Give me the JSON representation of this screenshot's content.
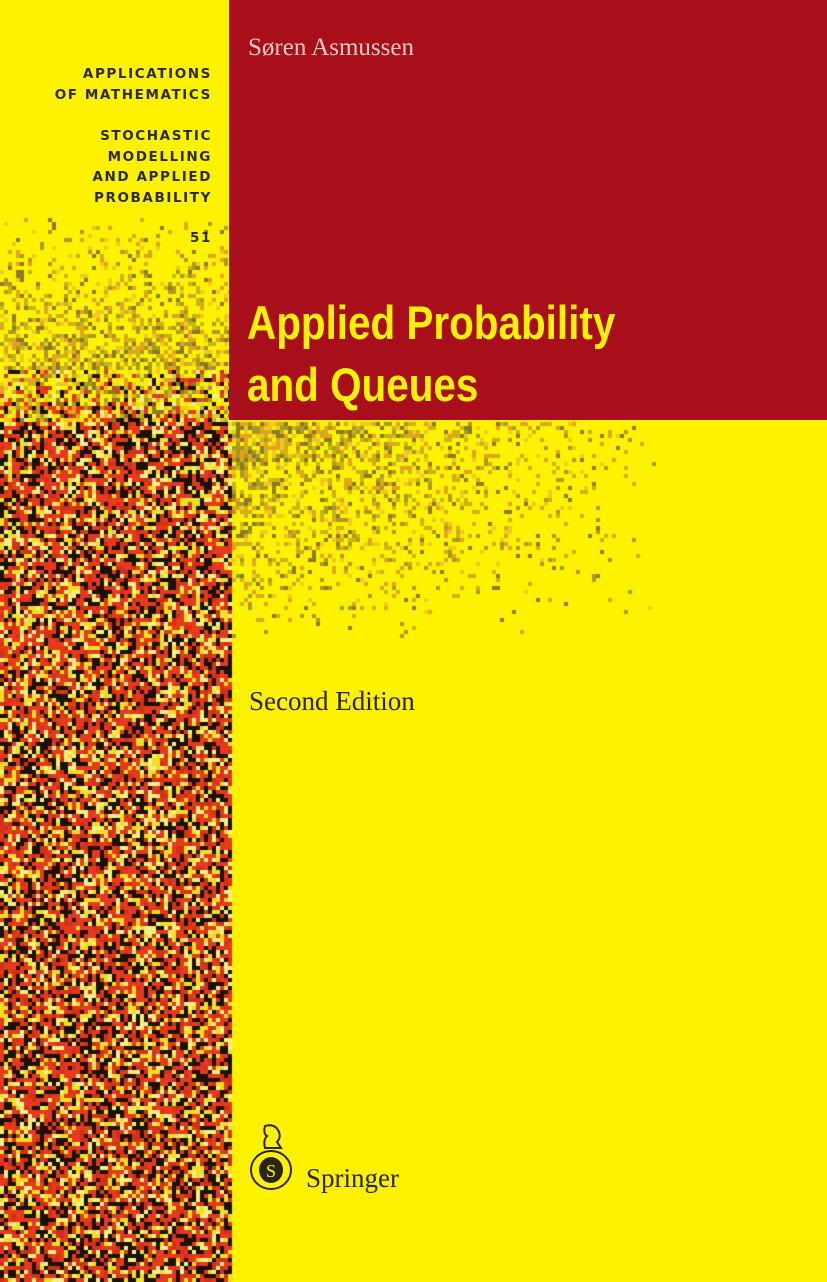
{
  "series": {
    "line1": [
      "APPLICATIONS",
      "OF MATHEMATICS"
    ],
    "line2": [
      "STOCHASTIC",
      "MODELLING",
      "AND APPLIED",
      "PROBABILITY"
    ],
    "volume": "51"
  },
  "author": "Søren Asmussen",
  "title": [
    "Applied Probability",
    "and Queues"
  ],
  "edition": "Second Edition",
  "publisher": {
    "name": "Springer",
    "logo_icon": "springer-knight-icon"
  },
  "colors": {
    "background": "#fff200",
    "title_block": "#a90f1a",
    "noise_red": "#e8381e",
    "noise_black": "#1a1208"
  }
}
